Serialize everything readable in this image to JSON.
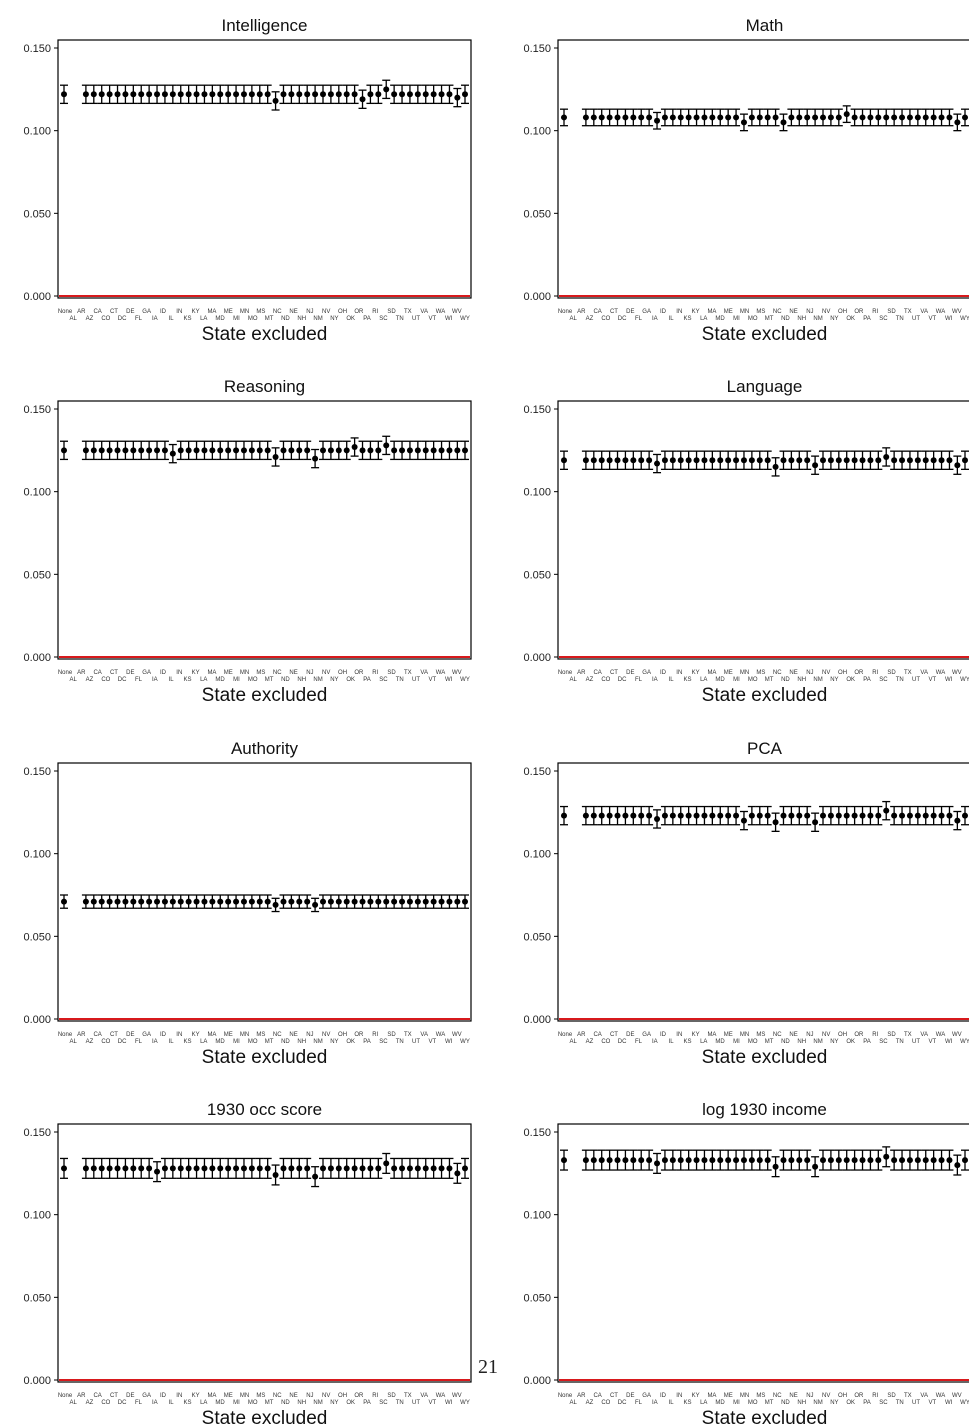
{
  "page_number": "21",
  "colors": {
    "points": "#000000",
    "reference_line": "#d7191c",
    "frame": "#000000"
  },
  "chart_data": [
    {
      "type": "scatter",
      "title": "Intelligence",
      "xlabel": "State excluded",
      "ylim": [
        0,
        0.15
      ],
      "yticks": [
        "0.000",
        "0.050",
        "0.100",
        "0.150"
      ],
      "reference_line": 0,
      "grid": false,
      "x_top_labels": [
        "None",
        "AR",
        "CA",
        "CT",
        "DE",
        "GA",
        "ID",
        "IN",
        "KY",
        "MA",
        "ME",
        "MN",
        "MS",
        "NC",
        "NE",
        "NJ",
        "NV",
        "OH",
        "OR",
        "RI",
        "SD",
        "TX",
        "VA",
        "WA",
        "WV"
      ],
      "x_bottom_labels": [
        "AL",
        "AZ",
        "CO",
        "DC",
        "FL",
        "IA",
        "IL",
        "KS",
        "LA",
        "MD",
        "MI",
        "MO",
        "MT",
        "ND",
        "NH",
        "NM",
        "NY",
        "OK",
        "PA",
        "SC",
        "TN",
        "UT",
        "VT",
        "WI",
        "WY"
      ],
      "base": 0.122,
      "halfwidth": 0.0055,
      "dips": [
        [
          25,
          -0.004
        ],
        [
          36,
          -0.003
        ],
        [
          39,
          0.003
        ],
        [
          48,
          -0.002
        ]
      ]
    },
    {
      "type": "scatter",
      "title": "Math",
      "xlabel": "State excluded",
      "ylim": [
        0,
        0.15
      ],
      "yticks": [
        "0.000",
        "0.050",
        "0.100",
        "0.150"
      ],
      "reference_line": 0,
      "grid": false,
      "x_top_labels": [
        "None",
        "AR",
        "CA",
        "CT",
        "DE",
        "GA",
        "ID",
        "IN",
        "KY",
        "MA",
        "ME",
        "MN",
        "MS",
        "NC",
        "NE",
        "NJ",
        "NV",
        "OH",
        "OR",
        "RI",
        "SD",
        "TX",
        "VA",
        "WA",
        "WV"
      ],
      "x_bottom_labels": [
        "AL",
        "AZ",
        "CO",
        "DC",
        "FL",
        "IA",
        "IL",
        "KS",
        "LA",
        "MD",
        "MI",
        "MO",
        "MT",
        "ND",
        "NH",
        "NM",
        "NY",
        "OK",
        "PA",
        "SC",
        "TN",
        "UT",
        "VT",
        "WI",
        "WY"
      ],
      "base": 0.108,
      "halfwidth": 0.005,
      "dips": [
        [
          10,
          -0.002
        ],
        [
          21,
          -0.003
        ],
        [
          26,
          -0.003
        ],
        [
          34,
          0.002
        ],
        [
          48,
          -0.003
        ]
      ]
    },
    {
      "type": "scatter",
      "title": "Reasoning",
      "xlabel": "State excluded",
      "ylim": [
        0,
        0.15
      ],
      "yticks": [
        "0.000",
        "0.050",
        "0.100",
        "0.150"
      ],
      "reference_line": 0,
      "grid": false,
      "x_top_labels": [
        "None",
        "AR",
        "CA",
        "CT",
        "DE",
        "GA",
        "ID",
        "IN",
        "KY",
        "MA",
        "ME",
        "MN",
        "MS",
        "NC",
        "NE",
        "NJ",
        "NV",
        "OH",
        "OR",
        "RI",
        "SD",
        "TX",
        "VA",
        "WA",
        "WV"
      ],
      "x_bottom_labels": [
        "AL",
        "AZ",
        "CO",
        "DC",
        "FL",
        "IA",
        "IL",
        "KS",
        "LA",
        "MD",
        "MI",
        "MO",
        "MT",
        "ND",
        "NH",
        "NM",
        "NY",
        "OK",
        "PA",
        "SC",
        "TN",
        "UT",
        "VT",
        "WI",
        "WY"
      ],
      "base": 0.125,
      "halfwidth": 0.0055,
      "dips": [
        [
          12,
          -0.002
        ],
        [
          25,
          -0.004
        ],
        [
          30,
          -0.005
        ],
        [
          35,
          0.002
        ],
        [
          39,
          0.003
        ]
      ]
    },
    {
      "type": "scatter",
      "title": "Language",
      "xlabel": "State excluded",
      "ylim": [
        0,
        0.15
      ],
      "yticks": [
        "0.000",
        "0.050",
        "0.100",
        "0.150"
      ],
      "reference_line": 0,
      "grid": false,
      "x_top_labels": [
        "None",
        "AR",
        "CA",
        "CT",
        "DE",
        "GA",
        "ID",
        "IN",
        "KY",
        "MA",
        "ME",
        "MN",
        "MS",
        "NC",
        "NE",
        "NJ",
        "NV",
        "OH",
        "OR",
        "RI",
        "SD",
        "TX",
        "VA",
        "WA",
        "WV"
      ],
      "x_bottom_labels": [
        "AL",
        "AZ",
        "CO",
        "DC",
        "FL",
        "IA",
        "IL",
        "KS",
        "LA",
        "MD",
        "MI",
        "MO",
        "MT",
        "ND",
        "NH",
        "NM",
        "NY",
        "OK",
        "PA",
        "SC",
        "TN",
        "UT",
        "VT",
        "WI",
        "WY"
      ],
      "base": 0.119,
      "halfwidth": 0.0055,
      "dips": [
        [
          10,
          -0.002
        ],
        [
          25,
          -0.004
        ],
        [
          30,
          -0.003
        ],
        [
          39,
          0.002
        ],
        [
          48,
          -0.003
        ]
      ]
    },
    {
      "type": "scatter",
      "title": "Authority",
      "xlabel": "State excluded",
      "ylim": [
        0,
        0.15
      ],
      "yticks": [
        "0.000",
        "0.050",
        "0.100",
        "0.150"
      ],
      "reference_line": 0,
      "grid": false,
      "x_top_labels": [
        "None",
        "AR",
        "CA",
        "CT",
        "DE",
        "GA",
        "ID",
        "IN",
        "KY",
        "MA",
        "ME",
        "MN",
        "MS",
        "NC",
        "NE",
        "NJ",
        "NV",
        "OH",
        "OR",
        "RI",
        "SD",
        "TX",
        "VA",
        "WA",
        "WV"
      ],
      "x_bottom_labels": [
        "AL",
        "AZ",
        "CO",
        "DC",
        "FL",
        "IA",
        "IL",
        "KS",
        "LA",
        "MD",
        "MI",
        "MO",
        "MT",
        "ND",
        "NH",
        "NM",
        "NY",
        "OK",
        "PA",
        "SC",
        "TN",
        "UT",
        "VT",
        "WI",
        "WY"
      ],
      "base": 0.071,
      "halfwidth": 0.004,
      "dips": [
        [
          25,
          -0.002
        ],
        [
          30,
          -0.002
        ]
      ]
    },
    {
      "type": "scatter",
      "title": "PCA",
      "xlabel": "State excluded",
      "ylim": [
        0,
        0.15
      ],
      "yticks": [
        "0.000",
        "0.050",
        "0.100",
        "0.150"
      ],
      "reference_line": 0,
      "grid": false,
      "x_top_labels": [
        "None",
        "AR",
        "CA",
        "CT",
        "DE",
        "GA",
        "ID",
        "IN",
        "KY",
        "MA",
        "ME",
        "MN",
        "MS",
        "NC",
        "NE",
        "NJ",
        "NV",
        "OH",
        "OR",
        "RI",
        "SD",
        "TX",
        "VA",
        "WA",
        "WV"
      ],
      "x_bottom_labels": [
        "AL",
        "AZ",
        "CO",
        "DC",
        "FL",
        "IA",
        "IL",
        "KS",
        "LA",
        "MD",
        "MI",
        "MO",
        "MT",
        "ND",
        "NH",
        "NM",
        "NY",
        "OK",
        "PA",
        "SC",
        "TN",
        "UT",
        "VT",
        "WI",
        "WY"
      ],
      "base": 0.123,
      "halfwidth": 0.0055,
      "dips": [
        [
          10,
          -0.002
        ],
        [
          21,
          -0.003
        ],
        [
          25,
          -0.004
        ],
        [
          30,
          -0.004
        ],
        [
          39,
          0.003
        ],
        [
          48,
          -0.003
        ]
      ]
    },
    {
      "type": "scatter",
      "title": "1930 occ score",
      "xlabel": "State excluded",
      "ylim": [
        0,
        0.15
      ],
      "yticks": [
        "0.000",
        "0.050",
        "0.100",
        "0.150"
      ],
      "reference_line": 0,
      "grid": false,
      "x_top_labels": [
        "None",
        "AR",
        "CA",
        "CT",
        "DE",
        "GA",
        "ID",
        "IN",
        "KY",
        "MA",
        "ME",
        "MN",
        "MS",
        "NC",
        "NE",
        "NJ",
        "NV",
        "OH",
        "OR",
        "RI",
        "SD",
        "TX",
        "VA",
        "WA",
        "WV"
      ],
      "x_bottom_labels": [
        "AL",
        "AZ",
        "CO",
        "DC",
        "FL",
        "IA",
        "IL",
        "KS",
        "LA",
        "MD",
        "MI",
        "MO",
        "MT",
        "ND",
        "NH",
        "NM",
        "NY",
        "OK",
        "PA",
        "SC",
        "TN",
        "UT",
        "VT",
        "WI",
        "WY"
      ],
      "base": 0.128,
      "halfwidth": 0.006,
      "dips": [
        [
          10,
          -0.002
        ],
        [
          25,
          -0.004
        ],
        [
          30,
          -0.005
        ],
        [
          39,
          0.003
        ],
        [
          48,
          -0.003
        ]
      ]
    },
    {
      "type": "scatter",
      "title": "log 1930 income",
      "xlabel": "State excluded",
      "ylim": [
        0,
        0.15
      ],
      "yticks": [
        "0.000",
        "0.050",
        "0.100",
        "0.150"
      ],
      "reference_line": 0,
      "grid": false,
      "x_top_labels": [
        "None",
        "AR",
        "CA",
        "CT",
        "DE",
        "GA",
        "ID",
        "IN",
        "KY",
        "MA",
        "ME",
        "MN",
        "MS",
        "NC",
        "NE",
        "NJ",
        "NV",
        "OH",
        "OR",
        "RI",
        "SD",
        "TX",
        "VA",
        "WA",
        "WV"
      ],
      "x_bottom_labels": [
        "AL",
        "AZ",
        "CO",
        "DC",
        "FL",
        "IA",
        "IL",
        "KS",
        "LA",
        "MD",
        "MI",
        "MO",
        "MT",
        "ND",
        "NH",
        "NM",
        "NY",
        "OK",
        "PA",
        "SC",
        "TN",
        "UT",
        "VT",
        "WI",
        "WY"
      ],
      "base": 0.133,
      "halfwidth": 0.006,
      "dips": [
        [
          10,
          -0.002
        ],
        [
          25,
          -0.004
        ],
        [
          30,
          -0.004
        ],
        [
          39,
          0.002
        ],
        [
          48,
          -0.003
        ]
      ]
    }
  ]
}
